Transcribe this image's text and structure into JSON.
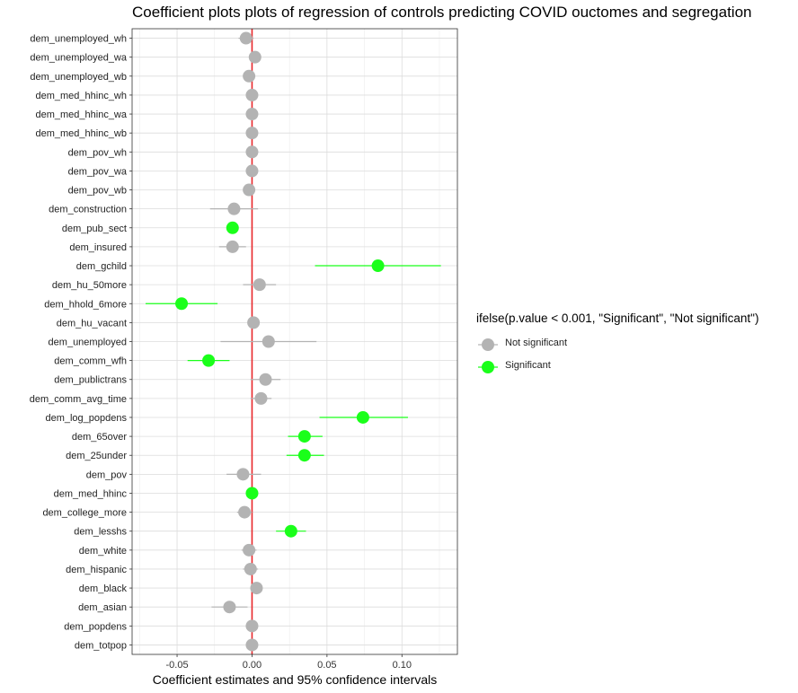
{
  "chart_data": {
    "type": "scatter",
    "title": "Coefficient plots plots of regression of controls predicting COVID ouctomes and segregation",
    "xlabel": "Coefficient estimates and 95% confidence intervals",
    "ylabel": "",
    "xlim": [
      -0.08,
      0.137
    ],
    "xticks": [
      -0.05,
      0.0,
      0.05,
      0.1
    ],
    "xtick_labels": [
      "-0.05",
      "0.00",
      "0.05",
      "0.10"
    ],
    "reference_line_x": 0,
    "grid": true,
    "legend_position": "right",
    "legend_title": "ifelse(p.value < 0.001, \"Significant\", \"Not significant\")",
    "series_styles": [
      {
        "name": "Not significant",
        "color": "#b3b3b3"
      },
      {
        "name": "Significant",
        "color": "#1aff1a"
      }
    ],
    "reference_line_color": "#e8282b",
    "points": [
      {
        "term": "dem_unemployed_wh",
        "estimate": -0.004,
        "low": -0.009,
        "high": 0.001,
        "group": "Not significant"
      },
      {
        "term": "dem_unemployed_wa",
        "estimate": 0.002,
        "low": -0.001,
        "high": 0.005,
        "group": "Not significant"
      },
      {
        "term": "dem_unemployed_wb",
        "estimate": -0.002,
        "low": -0.005,
        "high": 0.001,
        "group": "Not significant"
      },
      {
        "term": "dem_med_hhinc_wh",
        "estimate": 0.0,
        "low": -0.002,
        "high": 0.002,
        "group": "Not significant"
      },
      {
        "term": "dem_med_hhinc_wa",
        "estimate": 0.0,
        "low": -0.002,
        "high": 0.002,
        "group": "Not significant"
      },
      {
        "term": "dem_med_hhinc_wb",
        "estimate": 0.0,
        "low": -0.002,
        "high": 0.002,
        "group": "Not significant"
      },
      {
        "term": "dem_pov_wh",
        "estimate": 0.0,
        "low": -0.002,
        "high": 0.002,
        "group": "Not significant"
      },
      {
        "term": "dem_pov_wa",
        "estimate": 0.0,
        "low": -0.002,
        "high": 0.002,
        "group": "Not significant"
      },
      {
        "term": "dem_pov_wb",
        "estimate": -0.002,
        "low": -0.004,
        "high": 0.0,
        "group": "Not significant"
      },
      {
        "term": "dem_construction",
        "estimate": -0.012,
        "low": -0.028,
        "high": 0.004,
        "group": "Not significant"
      },
      {
        "term": "dem_pub_sect",
        "estimate": -0.013,
        "low": -0.016,
        "high": -0.01,
        "group": "Significant"
      },
      {
        "term": "dem_insured",
        "estimate": -0.013,
        "low": -0.022,
        "high": -0.004,
        "group": "Not significant"
      },
      {
        "term": "dem_gchild",
        "estimate": 0.084,
        "low": 0.042,
        "high": 0.126,
        "group": "Significant"
      },
      {
        "term": "dem_hu_50more",
        "estimate": 0.005,
        "low": -0.006,
        "high": 0.016,
        "group": "Not significant"
      },
      {
        "term": "dem_hhold_6more",
        "estimate": -0.047,
        "low": -0.071,
        "high": -0.023,
        "group": "Significant"
      },
      {
        "term": "dem_hu_vacant",
        "estimate": 0.001,
        "low": -0.002,
        "high": 0.004,
        "group": "Not significant"
      },
      {
        "term": "dem_unemployed",
        "estimate": 0.011,
        "low": -0.021,
        "high": 0.043,
        "group": "Not significant"
      },
      {
        "term": "dem_comm_wfh",
        "estimate": -0.029,
        "low": -0.043,
        "high": -0.015,
        "group": "Significant"
      },
      {
        "term": "dem_publictrans",
        "estimate": 0.009,
        "low": -0.001,
        "high": 0.019,
        "group": "Not significant"
      },
      {
        "term": "dem_comm_avg_time",
        "estimate": 0.006,
        "low": -0.001,
        "high": 0.013,
        "group": "Not significant"
      },
      {
        "term": "dem_log_popdens",
        "estimate": 0.074,
        "low": 0.045,
        "high": 0.104,
        "group": "Significant"
      },
      {
        "term": "dem_65over",
        "estimate": 0.035,
        "low": 0.024,
        "high": 0.047,
        "group": "Significant"
      },
      {
        "term": "dem_25under",
        "estimate": 0.035,
        "low": 0.023,
        "high": 0.048,
        "group": "Significant"
      },
      {
        "term": "dem_pov",
        "estimate": -0.006,
        "low": -0.017,
        "high": 0.006,
        "group": "Not significant"
      },
      {
        "term": "dem_med_hhinc",
        "estimate": 0.0,
        "low": -0.002,
        "high": 0.002,
        "group": "Significant"
      },
      {
        "term": "dem_college_more",
        "estimate": -0.005,
        "low": -0.01,
        "high": 0.0,
        "group": "Not significant"
      },
      {
        "term": "dem_lesshs",
        "estimate": 0.026,
        "low": 0.016,
        "high": 0.036,
        "group": "Significant"
      },
      {
        "term": "dem_white",
        "estimate": -0.002,
        "low": -0.007,
        "high": 0.003,
        "group": "Not significant"
      },
      {
        "term": "dem_hispanic",
        "estimate": -0.001,
        "low": -0.006,
        "high": 0.004,
        "group": "Not significant"
      },
      {
        "term": "dem_black",
        "estimate": 0.003,
        "low": -0.001,
        "high": 0.007,
        "group": "Not significant"
      },
      {
        "term": "dem_asian",
        "estimate": -0.015,
        "low": -0.027,
        "high": -0.003,
        "group": "Not significant"
      },
      {
        "term": "dem_popdens",
        "estimate": 0.0,
        "low": -0.002,
        "high": 0.002,
        "group": "Not significant"
      },
      {
        "term": "dem_totpop",
        "estimate": 0.0,
        "low": -0.002,
        "high": 0.002,
        "group": "Not significant"
      }
    ]
  }
}
